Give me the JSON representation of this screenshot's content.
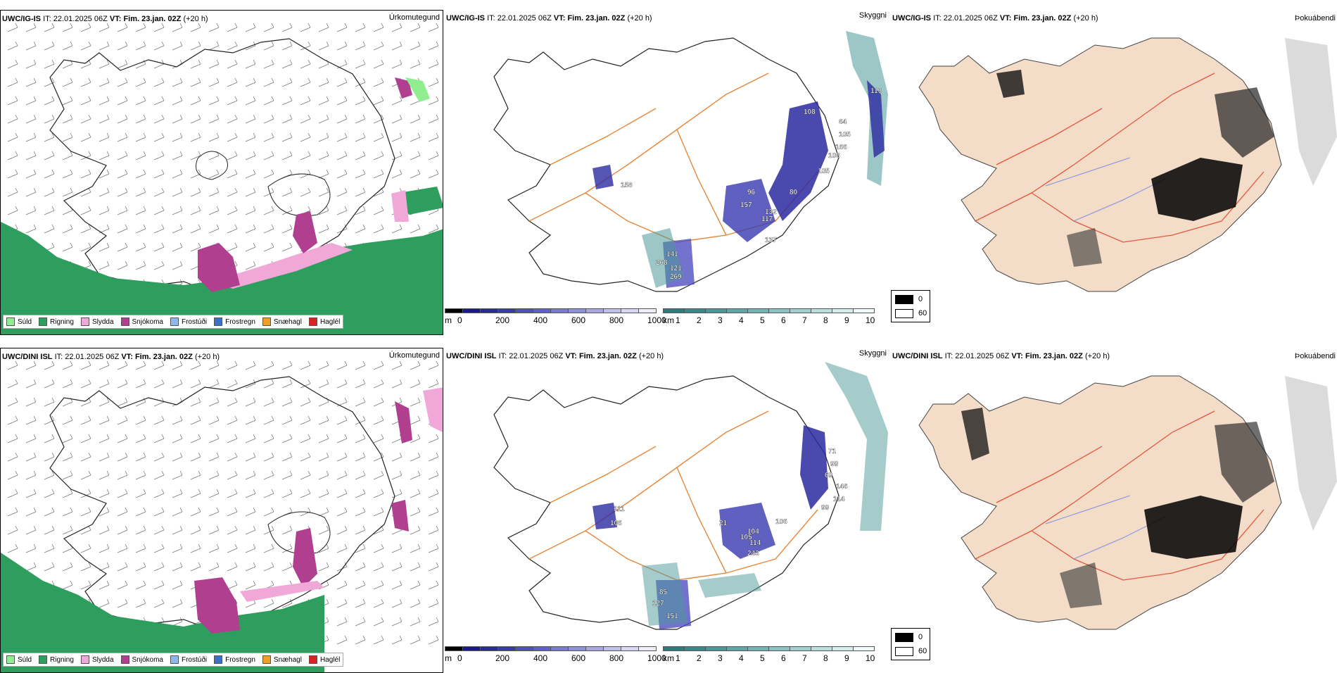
{
  "rows": [
    {
      "model": "UWC/IG-IS",
      "it_label": "IT:",
      "issue_time": "22.01.2025 06Z",
      "vt_label": "VT:",
      "valid_time": "Fim. 23.jan. 02Z",
      "lead": "(+20 h)",
      "labels_vis": [
        "119",
        "108",
        "64",
        "105",
        "166",
        "108",
        "105",
        "80",
        "96",
        "157",
        "158",
        "132",
        "117",
        "137",
        "141",
        "268",
        "121",
        "269"
      ],
      "labels_vis_count_note": ""
    },
    {
      "model": "UWC/DINI ISL",
      "it_label": "IT:",
      "issue_time": "22.01.2025 06Z",
      "vt_label": "VT:",
      "valid_time": "Fim. 23.jan. 02Z",
      "lead": "(+20 h)",
      "labels_vis": [
        "71",
        "99",
        "69",
        "146",
        "114",
        "99",
        "106",
        "111",
        "21",
        "104",
        "105",
        "114",
        "106",
        "243",
        "85",
        "127",
        "151"
      ],
      "labels_vis_count_note": ""
    }
  ],
  "panel_titles": {
    "precip": "Úrkomutegund",
    "visibility": "Skyggni",
    "fog": "Þokuábendi"
  },
  "precip_legend": [
    {
      "label": "Súld",
      "color": "#90ee90"
    },
    {
      "label": "Rigning",
      "color": "#2e9e5e"
    },
    {
      "label": "Slydda",
      "color": "#f0a8d8"
    },
    {
      "label": "Snjókoma",
      "color": "#b0408f"
    },
    {
      "label": "Frostúði",
      "color": "#8fb8ea"
    },
    {
      "label": "Frostregn",
      "color": "#3c70c8"
    },
    {
      "label": "Snæhagl",
      "color": "#f0a020"
    },
    {
      "label": "Haglél",
      "color": "#e02020"
    }
  ],
  "vis_bar_m": {
    "unit": "m",
    "ticks": [
      "0",
      "200",
      "400",
      "600",
      "800",
      "1000"
    ],
    "colors": [
      "#000000",
      "#1a1a80",
      "#2a2aa0",
      "#3838b0",
      "#5050c0",
      "#6060c8",
      "#7a7ad0",
      "#9090d8",
      "#a8a8e0",
      "#c0c0ea",
      "#d8d8f4",
      "#eeeef8"
    ]
  },
  "vis_bar_km": {
    "unit": "km",
    "ticks": [
      "1",
      "2",
      "3",
      "4",
      "5",
      "6",
      "7",
      "8",
      "9",
      "10"
    ],
    "colors": [
      "#2e7d7d",
      "#3b8a8a",
      "#4c9898",
      "#5fa6a6",
      "#74b4b4",
      "#8bc2c2",
      "#a2d0d0",
      "#bbdede",
      "#d4ecec",
      "#f0fafa"
    ]
  },
  "fog_legend": [
    {
      "value": "0",
      "color": "#000000"
    },
    {
      "value": "60",
      "color": "#ffffff"
    }
  ],
  "colors": {
    "rain": "#2e9e5e",
    "snow": "#b0408f",
    "sleet": "#f0a8d8",
    "drizzle": "#90ee90",
    "vis_blue": "#2a2aa0",
    "vis_teal": "#4c9898",
    "road": "#e8863a",
    "fog_land": "#f3dcc8",
    "fog_road": "#e4583c",
    "fog_river": "#8090e0"
  }
}
